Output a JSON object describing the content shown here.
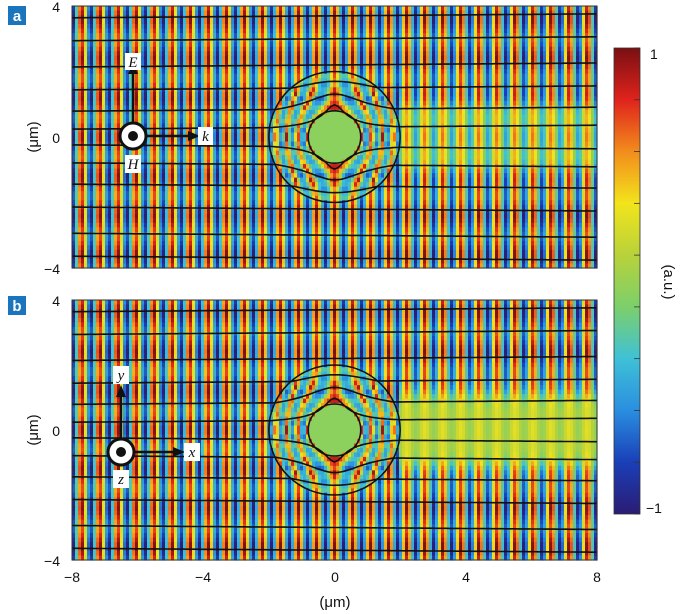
{
  "panels": [
    {
      "letter": "a",
      "y_ticks": [
        "4",
        "0",
        "−4"
      ],
      "y_label": "(μm)",
      "vectors": {
        "up": "E",
        "right": "k",
        "out": "H"
      },
      "shadow_strength": 0.45
    },
    {
      "letter": "b",
      "y_ticks": [
        "4",
        "0",
        "−4"
      ],
      "y_label": "(μm)",
      "vectors": {
        "up": "y",
        "right": "x",
        "out": "z"
      },
      "shadow_strength": 0.85
    }
  ],
  "x_axis": {
    "ticks": [
      "−8",
      "−4",
      "0",
      "4",
      "8"
    ],
    "label": "(μm)"
  },
  "colorbar": {
    "ticks": [
      "1",
      "−1"
    ],
    "label": "(a.u.)"
  },
  "colors": {
    "panel_badge": "#1b75bc",
    "colormap": [
      "#2b1c73",
      "#1a3fb8",
      "#2a8ee0",
      "#3fc1d6",
      "#7ccf6b",
      "#b8d23a",
      "#f2e41c",
      "#f28c1c",
      "#e0231c",
      "#7a0f12"
    ],
    "streamline": "#111111",
    "cloak_outline": "#111111"
  },
  "chart_data": [
    {
      "type": "heatmap",
      "panel": "a",
      "x_range": [
        -8,
        8
      ],
      "y_range": [
        -4,
        4
      ],
      "value_range": [
        -1,
        1
      ],
      "inner_radius_um": 0.8,
      "outer_radius_um": 2.0,
      "wave_direction": "+x"
    },
    {
      "type": "heatmap",
      "panel": "b",
      "x_range": [
        -8,
        8
      ],
      "y_range": [
        -4,
        4
      ],
      "value_range": [
        -1,
        1
      ],
      "inner_radius_um": 0.8,
      "outer_radius_um": 2.0,
      "wave_direction": "+x"
    }
  ]
}
